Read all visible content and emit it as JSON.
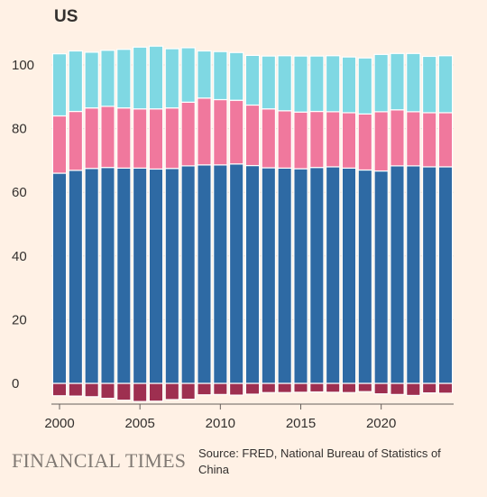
{
  "chart_data": {
    "type": "bar",
    "stacked": true,
    "title": "US",
    "xlabel": "",
    "ylabel": "",
    "ylim": [
      -7,
      107
    ],
    "yticks": [
      0,
      20,
      40,
      60,
      80,
      100
    ],
    "xticks": [
      2000,
      2005,
      2010,
      2015,
      2020
    ],
    "grid": true,
    "legend": "none",
    "categories": [
      2000,
      2001,
      2002,
      2003,
      2004,
      2005,
      2006,
      2007,
      2008,
      2009,
      2010,
      2011,
      2012,
      2013,
      2014,
      2015,
      2016,
      2017,
      2018,
      2019,
      2020,
      2021,
      2022,
      2023,
      2024
    ],
    "series": [
      {
        "color": "#9e2f50",
        "values": [
          -3.9,
          -4.0,
          -4.2,
          -4.7,
          -5.3,
          -5.7,
          -5.6,
          -5.1,
          -5.0,
          -3.6,
          -3.5,
          -3.7,
          -3.4,
          -2.9,
          -2.9,
          -2.8,
          -2.7,
          -2.8,
          -2.9,
          -2.6,
          -3.3,
          -3.5,
          -3.8,
          -3.0,
          -3.1
        ]
      },
      {
        "color": "#2e6aa4",
        "values": [
          66.0,
          66.9,
          67.5,
          67.8,
          67.6,
          67.6,
          67.3,
          67.5,
          68.3,
          68.6,
          68.6,
          68.9,
          68.4,
          67.7,
          67.6,
          67.4,
          67.8,
          68.0,
          67.6,
          67.0,
          66.7,
          68.3,
          68.3,
          68.0,
          68.0
        ]
      },
      {
        "color": "#f0789d",
        "values": [
          18.0,
          18.5,
          19.0,
          19.2,
          18.9,
          18.6,
          18.9,
          19.0,
          20.0,
          21.0,
          20.5,
          20.0,
          19.0,
          18.5,
          18.0,
          17.8,
          17.6,
          17.3,
          17.4,
          17.6,
          18.6,
          17.6,
          17.0,
          17.0,
          17.0
        ]
      },
      {
        "color": "#7fd8e3",
        "values": [
          19.5,
          19.0,
          17.5,
          17.6,
          18.4,
          19.4,
          19.7,
          18.6,
          17.1,
          14.8,
          15.1,
          15.0,
          15.6,
          16.6,
          17.3,
          17.6,
          17.4,
          17.6,
          17.5,
          17.6,
          18.0,
          17.7,
          18.3,
          17.7,
          17.9
        ]
      }
    ]
  },
  "source": {
    "logo": "FINANCIAL TIMES",
    "note": "Source: FRED, National Bureau of Statistics of China"
  }
}
